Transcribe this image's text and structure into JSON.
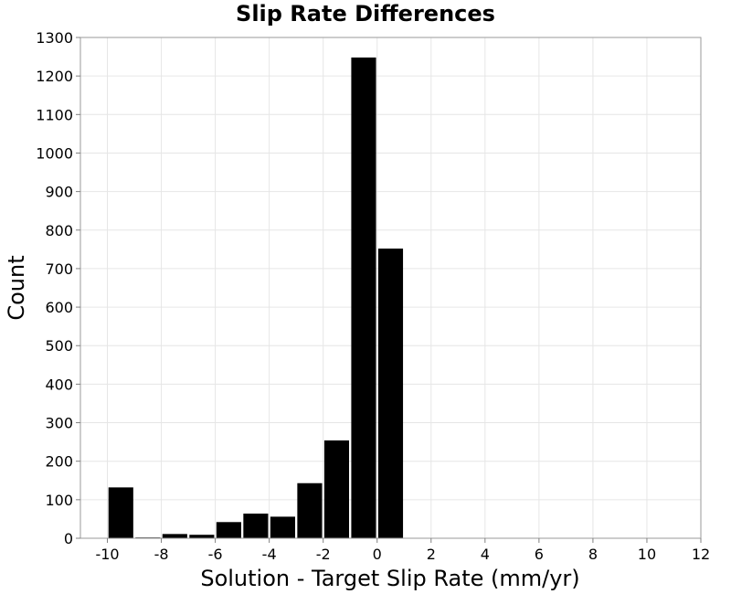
{
  "chart_data": {
    "type": "bar",
    "title": "Slip Rate Differences",
    "xlabel": "Solution - Target Slip Rate (mm/yr)",
    "ylabel": "Count",
    "xlim": [
      -11,
      12
    ],
    "ylim": [
      0,
      1300
    ],
    "xticks": [
      -10,
      -8,
      -6,
      -4,
      -2,
      0,
      2,
      4,
      6,
      8,
      10,
      12
    ],
    "yticks": [
      0,
      100,
      200,
      300,
      400,
      500,
      600,
      700,
      800,
      900,
      1000,
      1100,
      1200,
      1300
    ],
    "bin_width": 1,
    "bins": [
      {
        "x": -9.5,
        "value": 132
      },
      {
        "x": -8.5,
        "value": 2
      },
      {
        "x": -7.5,
        "value": 11
      },
      {
        "x": -6.5,
        "value": 9
      },
      {
        "x": -5.5,
        "value": 42
      },
      {
        "x": -4.5,
        "value": 64
      },
      {
        "x": -3.5,
        "value": 56
      },
      {
        "x": -2.5,
        "value": 143
      },
      {
        "x": -1.5,
        "value": 254
      },
      {
        "x": -0.5,
        "value": 1248
      },
      {
        "x": 0.5,
        "value": 752
      }
    ],
    "bar_color": "#000000",
    "grid": true
  }
}
